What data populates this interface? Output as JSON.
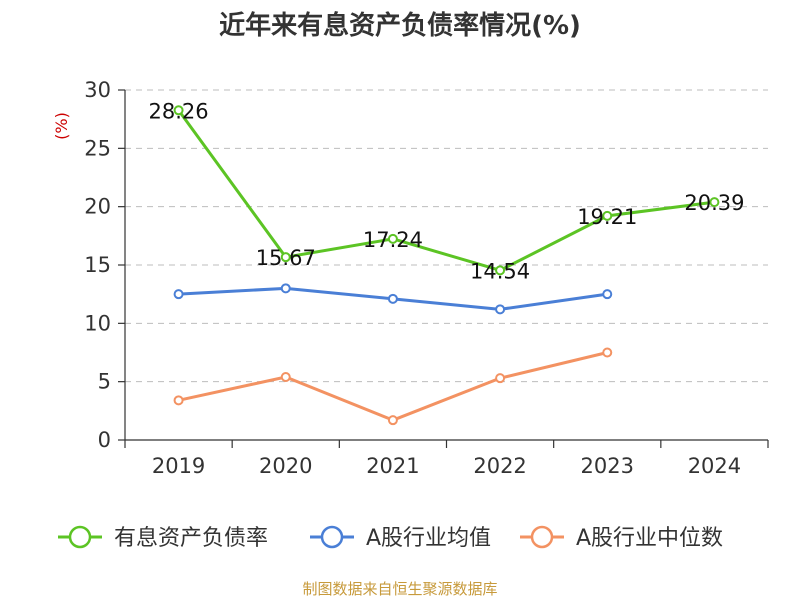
{
  "chart_data": {
    "type": "line",
    "title": "近年来有息资产负债率情况(%)",
    "ylabel": "(%)",
    "xlabel": "",
    "categories": [
      "2019",
      "2020",
      "2021",
      "2022",
      "2023",
      "2024"
    ],
    "ylim": [
      0,
      30
    ],
    "yticks": [
      0,
      5,
      10,
      15,
      20,
      25,
      30
    ],
    "grid": true,
    "legend_position": "bottom",
    "series": [
      {
        "name": "有息资产负债率",
        "color": "#5cc424",
        "values": [
          28.26,
          15.67,
          17.24,
          14.54,
          19.21,
          20.39
        ],
        "data_labels": [
          "28.26",
          "15.67",
          "17.24",
          "14.54",
          "19.21",
          "20.39"
        ]
      },
      {
        "name": "A股行业均值",
        "color": "#4a7fd6",
        "values": [
          12.5,
          13.0,
          12.1,
          11.2,
          12.5,
          null
        ]
      },
      {
        "name": "A股行业中位数",
        "color": "#f39262",
        "values": [
          3.4,
          5.4,
          1.7,
          5.3,
          7.5,
          null
        ]
      }
    ],
    "source": "制图数据来自恒生聚源数据库"
  }
}
